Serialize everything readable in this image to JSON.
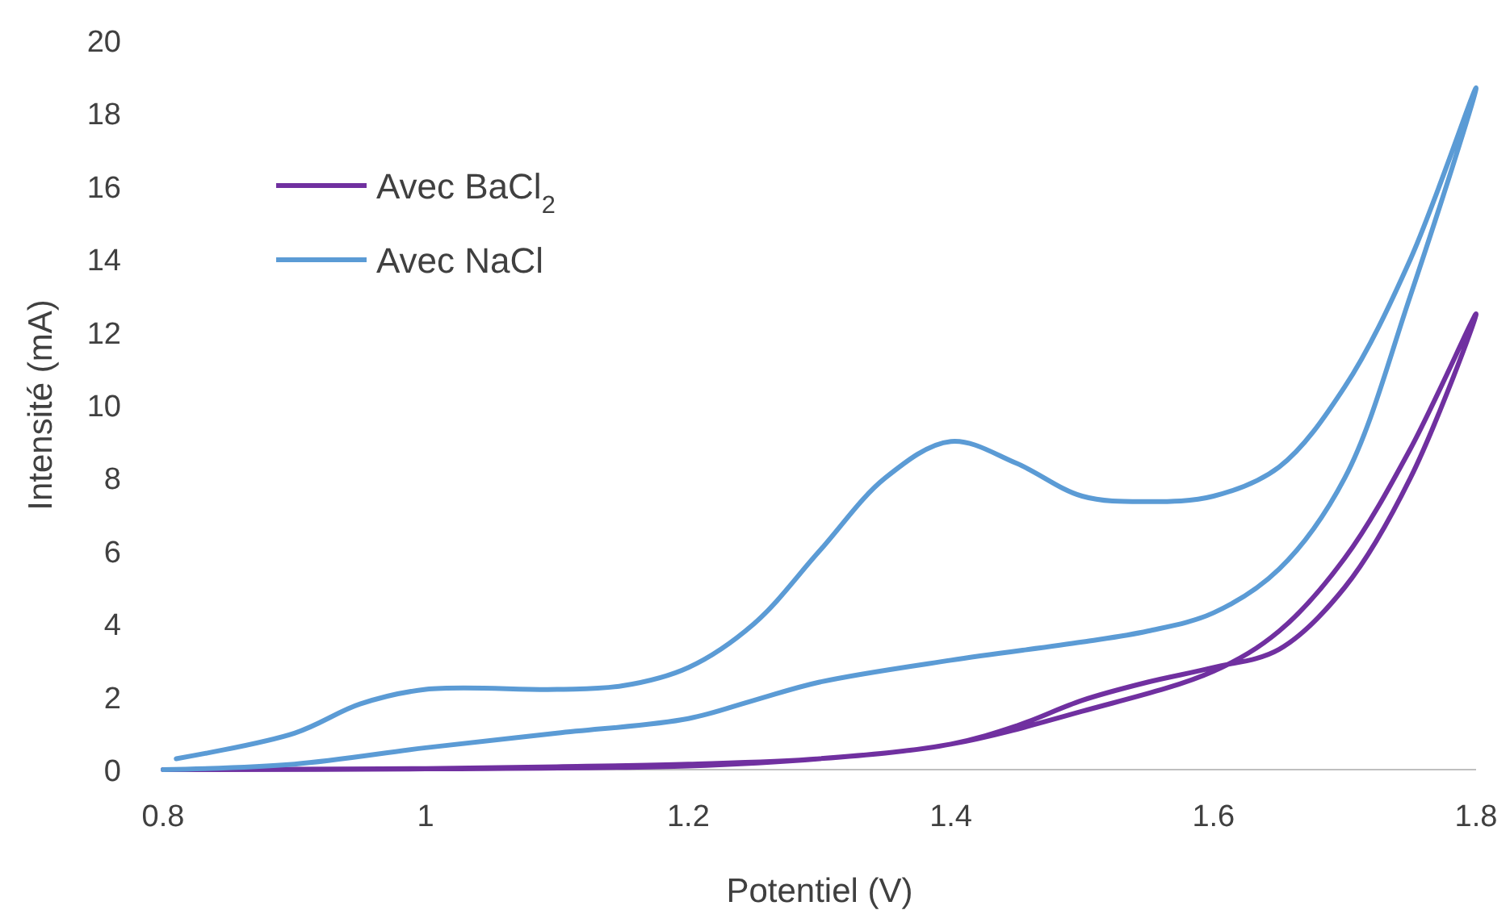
{
  "chart_data": {
    "type": "line",
    "xlabel": "Potentiel (V)",
    "ylabel": "Intensité (mA)",
    "xlim": [
      0.8,
      1.8
    ],
    "ylim": [
      0,
      20
    ],
    "xticks": [
      0.8,
      1,
      1.2,
      1.4,
      1.6,
      1.8
    ],
    "yticks": [
      0,
      2,
      4,
      6,
      8,
      10,
      12,
      14,
      16,
      18,
      20
    ],
    "grid": false,
    "legend": "top left",
    "marker": "none",
    "line_style": "solid",
    "series": [
      {
        "name": "Avec BaCl$_{2}$",
        "color": "#7030a0",
        "x": [
          0.82,
          0.9,
          1.0,
          1.1,
          1.2,
          1.3,
          1.4,
          1.5,
          1.6,
          1.65,
          1.7,
          1.75,
          1.8,
          1.75,
          1.7,
          1.65,
          1.6,
          1.55,
          1.5,
          1.45,
          1.4,
          1.3,
          1.2,
          1.0,
          0.8
        ],
        "values": [
          0,
          0.01,
          0.03,
          0.08,
          0.15,
          0.3,
          0.7,
          1.6,
          2.7,
          3.8,
          5.8,
          8.8,
          12.5,
          8,
          5,
          3.3,
          2.8,
          2.4,
          1.9,
          1.2,
          0.7,
          0.3,
          0.1,
          0.02,
          0
        ]
      },
      {
        "name": "Avec NaCl",
        "color": "#5b9bd5",
        "x": [
          0.81,
          0.9,
          0.95,
          1.0,
          1.1,
          1.15,
          1.2,
          1.25,
          1.3,
          1.35,
          1.4,
          1.45,
          1.5,
          1.55,
          1.6,
          1.65,
          1.7,
          1.75,
          1.8,
          1.75,
          1.7,
          1.65,
          1.6,
          1.55,
          1.5,
          1.4,
          1.3,
          1.25,
          1.2,
          1.1,
          1.0,
          0.9,
          0.8
        ],
        "values": [
          0.3,
          1.0,
          1.8,
          2.2,
          2.2,
          2.3,
          2.8,
          4.0,
          6.0,
          8.0,
          9.0,
          8.4,
          7.5,
          7.35,
          7.5,
          8.3,
          10.5,
          14,
          18.7,
          13,
          8,
          5.5,
          4.3,
          3.8,
          3.5,
          3.0,
          2.4,
          1.9,
          1.4,
          1.0,
          0.6,
          0.15,
          0
        ]
      }
    ]
  }
}
